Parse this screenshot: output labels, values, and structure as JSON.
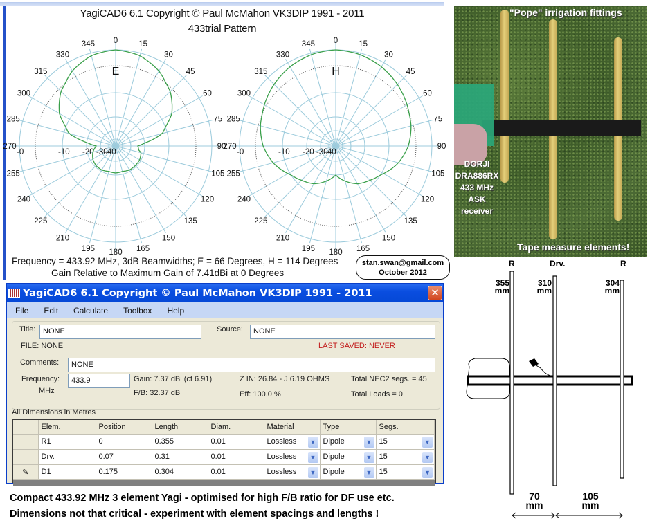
{
  "pattern": {
    "title": "YagiCAD6 6.1    Copyright © Paul McMahon VK3DIP 1991 - 2011",
    "subtitle": "433trial Pattern",
    "frequency_line": "Frequency = 433.92 MHz,  3dB Beamwidths; E = 66 Degrees, H = 114 Degrees",
    "gain_line": "Gain Relative to Maximum Gain of 7.41dBi at 0 Degrees",
    "colors": {
      "grid": "#9ccbdc",
      "trace": "#3aa04a",
      "dotted": "#555555"
    }
  },
  "chart_data": [
    {
      "type": "polar",
      "title": "E",
      "angle_labels": [
        "0",
        "15",
        "30",
        "45",
        "60",
        "75",
        "90",
        "105",
        "120",
        "135",
        "150",
        "165",
        "180",
        "195",
        "210",
        "225",
        "240",
        "255",
        "270",
        "285",
        "300",
        "315",
        "330",
        "345"
      ],
      "ring_labels": [
        "-0",
        "-10",
        "-20",
        "-30",
        "-40"
      ],
      "ring_db": [
        0,
        -10,
        -20,
        -30,
        -40
      ],
      "dotted_ring_db": -3,
      "series": [
        {
          "name": "E-plane gain (dB rel. max)",
          "angles": [
            0,
            15,
            30,
            45,
            60,
            75,
            90,
            100,
            105,
            120,
            135,
            150,
            165,
            180,
            195,
            210,
            225,
            240,
            255,
            260,
            270,
            285,
            300,
            315,
            330,
            345
          ],
          "values": [
            0,
            -0.5,
            -1.8,
            -3.8,
            -7,
            -12,
            -25,
            -24,
            -22,
            -21,
            -21,
            -21,
            -22,
            -21.5,
            -22,
            -21,
            -21,
            -22,
            -24,
            -25,
            -27,
            -12,
            -7,
            -3.8,
            -1.8,
            -0.5
          ]
        }
      ]
    },
    {
      "type": "polar",
      "title": "H",
      "angle_labels": [
        "0",
        "15",
        "30",
        "45",
        "60",
        "75",
        "90",
        "105",
        "120",
        "135",
        "150",
        "165",
        "180",
        "195",
        "210",
        "225",
        "240",
        "255",
        "270",
        "285",
        "300",
        "315",
        "330",
        "345"
      ],
      "ring_labels": [
        "-0",
        "-10",
        "-20",
        "-30",
        "-40"
      ],
      "ring_db": [
        0,
        -10,
        -20,
        -30,
        -40
      ],
      "dotted_ring_db": -3,
      "series": [
        {
          "name": "H-plane gain (dB rel. max)",
          "angles": [
            0,
            15,
            30,
            45,
            60,
            75,
            90,
            105,
            120,
            135,
            150,
            165,
            180,
            195,
            210,
            225,
            240,
            255,
            270,
            285,
            300,
            315,
            330,
            345
          ],
          "values": [
            0,
            -0.3,
            -0.9,
            -1.7,
            -2.6,
            -3.6,
            -5,
            -7,
            -9.5,
            -12,
            -14,
            -17,
            -20,
            -17,
            -14,
            -12,
            -9.5,
            -7,
            -5,
            -3.6,
            -2.6,
            -1.7,
            -0.9,
            -0.3
          ]
        }
      ]
    }
  ],
  "signature": {
    "email": "stan.swan@gmail.com",
    "date": "October 2012"
  },
  "window": {
    "title": "YagiCAD6 6.1   Copyright © Paul McMahon VK3DIP 1991 - 2011",
    "close_glyph": "✕",
    "menu": [
      "File",
      "Edit",
      "Calculate",
      "Toolbox",
      "Help"
    ],
    "form": {
      "title_label": "Title:",
      "title_value": "NONE",
      "source_label": "Source:",
      "source_value": "NONE",
      "file_label": "FILE: NONE",
      "last_saved": "LAST SAVED: NEVER",
      "comments_label": "Comments:",
      "comments_value": "NONE",
      "frequency_label": "Frequency:",
      "frequency_unit": "MHz",
      "frequency_value": "433.9",
      "gain": "Gain: 7.37 dBi (cf 6.91)",
      "fb": "F/B: 32.37 dB",
      "zin": "Z IN: 26.84 - J 6.19 OHMS",
      "eff": "Eff: 100.0 %",
      "nec2": "Total NEC2 segs. = 45",
      "loads": "Total Loads = 0"
    },
    "dimensions_note": "All Dimensions in Metres",
    "table": {
      "headers": [
        "Elem.",
        "Position",
        "Length",
        "Diam.",
        "Material",
        "Type",
        "Segs."
      ],
      "rows": [
        {
          "marker": "",
          "elem": "R1",
          "position": "0",
          "length": "0.355",
          "diam": "0.01",
          "material": "Lossless",
          "type": "Dipole",
          "segs": "15"
        },
        {
          "marker": "",
          "elem": "Drv.",
          "position": "0.07",
          "length": "0.31",
          "diam": "0.01",
          "material": "Lossless",
          "type": "Dipole",
          "segs": "15"
        },
        {
          "marker": "✎",
          "elem": "D1",
          "position": "0.175",
          "length": "0.304",
          "diam": "0.01",
          "material": "Lossless",
          "type": "Dipole",
          "segs": "15"
        }
      ],
      "dropdown_glyph": "▼"
    }
  },
  "caption": {
    "line1": "Compact 433.92 MHz 3 element Yagi - optimised for high F/B ratio for DF use etc.",
    "line2": "Dimensions not that critical - experiment with element spacings and lengths !"
  },
  "photo": {
    "top_label": "\"Pope\" irrigation fittings",
    "side_label": [
      "DORJI",
      "DRA886RX",
      "433 MHz",
      "ASK",
      "receiver"
    ],
    "bottom_label": "Tape measure elements!"
  },
  "diagram": {
    "labels": [
      "R",
      "Drv.",
      "R"
    ],
    "lengths": [
      "355",
      "310",
      "304"
    ],
    "unit": "mm",
    "spacings": [
      "70",
      "105"
    ]
  }
}
